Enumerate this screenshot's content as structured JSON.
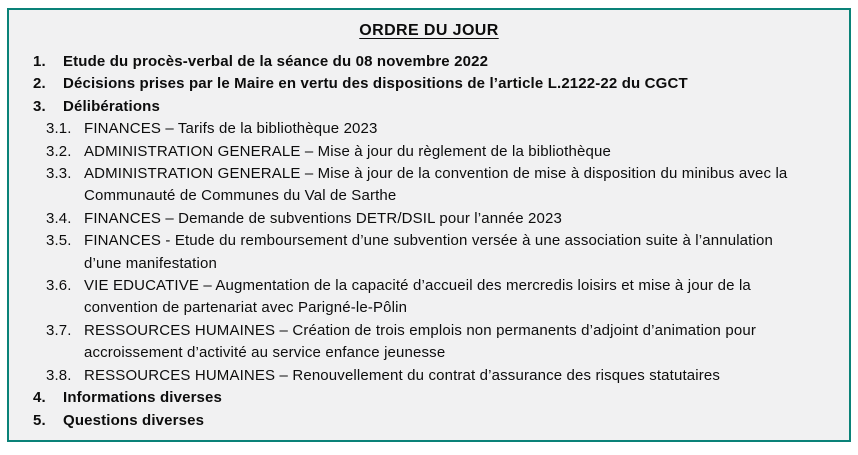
{
  "colors": {
    "border": "#0a8278",
    "surface": "#f1f1f2",
    "page_background": "#ffffff",
    "text": "#0d0d0d"
  },
  "document": {
    "title": "ORDRE DU JOUR",
    "items": [
      {
        "num": "1.",
        "level": 1,
        "text": "Etude du procès-verbal de la séance du 08 novembre 2022"
      },
      {
        "num": "2.",
        "level": 1,
        "text": "Décisions prises par le Maire en vertu des dispositions de l’article L.2122-22 du CGCT"
      },
      {
        "num": "3.",
        "level": 1,
        "text": "Délibérations"
      },
      {
        "num": "3.1.",
        "level": 2,
        "text": "FINANCES – Tarifs de la bibliothèque 2023"
      },
      {
        "num": "3.2.",
        "level": 2,
        "text": "ADMINISTRATION GENERALE – Mise à jour du règlement de la bibliothèque"
      },
      {
        "num": "3.3.",
        "level": 2,
        "text": "ADMINISTRATION GENERALE – Mise à jour de la convention de mise à disposition du minibus avec la\nCommunauté de Communes du Val de Sarthe"
      },
      {
        "num": "3.4.",
        "level": 2,
        "text": "FINANCES – Demande de subventions DETR/DSIL pour l’année 2023"
      },
      {
        "num": "3.5.",
        "level": 2,
        "text": "FINANCES - Etude du remboursement d’une subvention versée à une association suite à l’annulation\nd’une manifestation"
      },
      {
        "num": "3.6.",
        "level": 2,
        "text": "VIE EDUCATIVE – Augmentation de la capacité d’accueil des mercredis loisirs et mise à jour de la\nconvention de partenariat avec Parigné-le-Pôlin"
      },
      {
        "num": "3.7.",
        "level": 2,
        "text": "RESSOURCES HUMAINES – Création de trois emplois non permanents d’adjoint d’animation pour\naccroissement d’activité au service enfance jeunesse"
      },
      {
        "num": "3.8.",
        "level": 2,
        "text": "RESSOURCES HUMAINES – Renouvellement du contrat d’assurance des risques statutaires"
      },
      {
        "num": "4.",
        "level": 1,
        "text": "Informations diverses"
      },
      {
        "num": "5.",
        "level": 1,
        "text": "Questions diverses"
      }
    ]
  }
}
